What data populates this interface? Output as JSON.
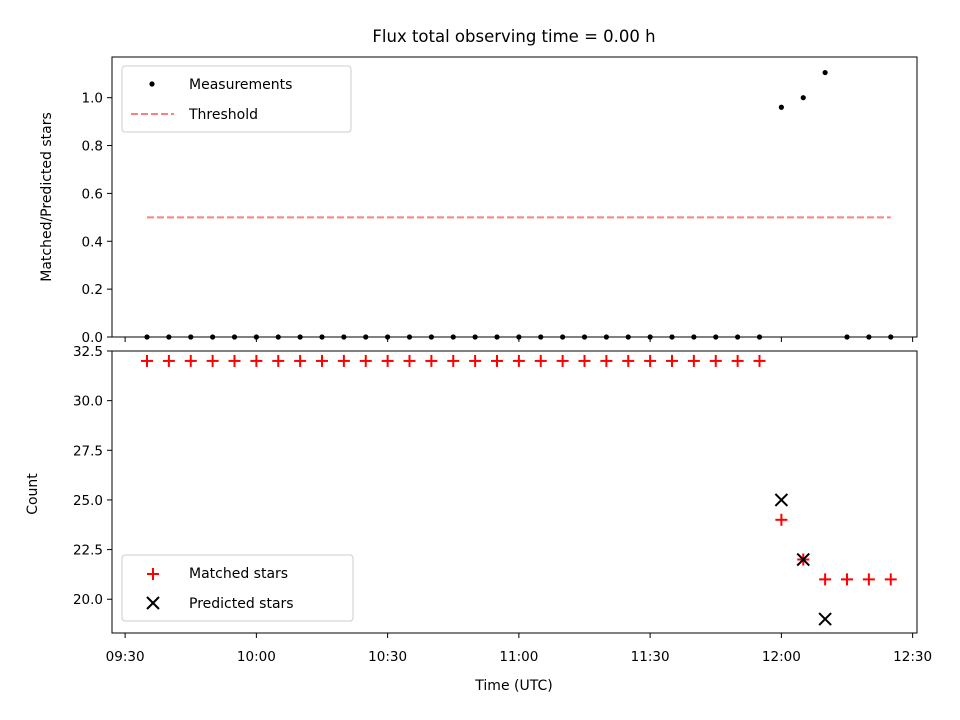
{
  "chart_data": [
    {
      "type": "scatter",
      "title": "Flux total observing time = 0.00 h",
      "xlabel": "",
      "ylabel": "Matched/Predicted stars",
      "xlim": [
        "09:27",
        "12:31"
      ],
      "ylim": [
        0,
        1.17
      ],
      "yticks": [
        "0.0",
        "0.2",
        "0.4",
        "0.6",
        "0.8",
        "1.0"
      ],
      "grid": false,
      "legend_position": "top-left",
      "series": [
        {
          "name": "Measurements",
          "marker": "dot",
          "color": "#000000",
          "x": [
            "09:35",
            "09:40",
            "09:45",
            "09:50",
            "09:55",
            "10:00",
            "10:05",
            "10:10",
            "10:15",
            "10:20",
            "10:25",
            "10:30",
            "10:35",
            "10:40",
            "10:45",
            "10:50",
            "10:55",
            "11:00",
            "11:05",
            "11:10",
            "11:15",
            "11:20",
            "11:25",
            "11:30",
            "11:35",
            "11:40",
            "11:45",
            "11:50",
            "11:55",
            "12:00",
            "12:05",
            "12:10",
            "12:15",
            "12:20",
            "12:25"
          ],
          "y": [
            0,
            0,
            0,
            0,
            0,
            0,
            0,
            0,
            0,
            0,
            0,
            0,
            0,
            0,
            0,
            0,
            0,
            0,
            0,
            0,
            0,
            0,
            0,
            0,
            0,
            0,
            0,
            0,
            0,
            0.96,
            1.0,
            1.105,
            0,
            0,
            0
          ]
        },
        {
          "name": "Threshold",
          "marker": "dashed-line",
          "color": "#ff7f7f",
          "x": [
            "09:35",
            "12:25"
          ],
          "y": [
            0.5,
            0.5
          ]
        }
      ]
    },
    {
      "type": "scatter",
      "title": "",
      "xlabel": "Time (UTC)",
      "ylabel": "Count",
      "xlim": [
        "09:27",
        "12:31"
      ],
      "ylim": [
        18.3,
        32.5
      ],
      "yticks": [
        "20.0",
        "22.5",
        "25.0",
        "27.5",
        "30.0",
        "32.5"
      ],
      "xticks": [
        "09:30",
        "10:00",
        "10:30",
        "11:00",
        "11:30",
        "12:00",
        "12:30"
      ],
      "grid": false,
      "legend_position": "bottom-left",
      "series": [
        {
          "name": "Matched stars",
          "marker": "plus",
          "color": "#ff0000",
          "x": [
            "09:35",
            "09:40",
            "09:45",
            "09:50",
            "09:55",
            "10:00",
            "10:05",
            "10:10",
            "10:15",
            "10:20",
            "10:25",
            "10:30",
            "10:35",
            "10:40",
            "10:45",
            "10:50",
            "10:55",
            "11:00",
            "11:05",
            "11:10",
            "11:15",
            "11:20",
            "11:25",
            "11:30",
            "11:35",
            "11:40",
            "11:45",
            "11:50",
            "11:55",
            "12:00",
            "12:05",
            "12:10",
            "12:15",
            "12:20",
            "12:25"
          ],
          "y": [
            32,
            32,
            32,
            32,
            32,
            32,
            32,
            32,
            32,
            32,
            32,
            32,
            32,
            32,
            32,
            32,
            32,
            32,
            32,
            32,
            32,
            32,
            32,
            32,
            32,
            32,
            32,
            32,
            32,
            24,
            22,
            21,
            21,
            21,
            21
          ]
        },
        {
          "name": "Predicted stars",
          "marker": "x",
          "color": "#000000",
          "x": [
            "12:00",
            "12:05",
            "12:10"
          ],
          "y": [
            25,
            22,
            19
          ]
        }
      ]
    }
  ]
}
